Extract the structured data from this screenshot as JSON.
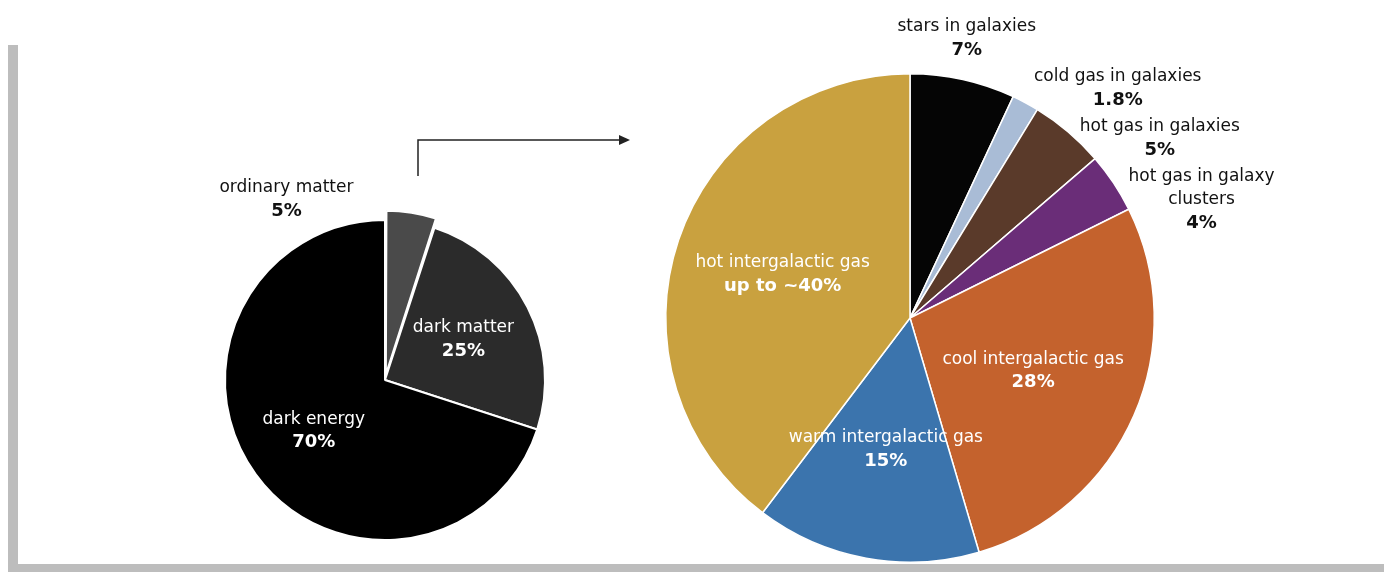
{
  "chart_data": [
    {
      "type": "pie",
      "categories": [
        "ordinary matter",
        "dark matter",
        "dark energy"
      ],
      "values": [
        5,
        25,
        70
      ],
      "value_labels": [
        "5%",
        "25%",
        "70%"
      ],
      "colors": [
        "#4a4a4a",
        "#2b2b2b",
        "#000000"
      ],
      "data_labels": true
    },
    {
      "type": "pie",
      "categories": [
        "stars in galaxies",
        "cold gas in galaxies",
        "hot gas in galaxies",
        "hot gas in galaxy clusters",
        "cool intergalactic gas",
        "warm intergalactic gas",
        "hot intergalactic gas"
      ],
      "values": [
        7,
        1.8,
        5,
        4,
        28,
        15,
        40
      ],
      "value_labels": [
        "7%",
        "1.8%",
        "5%",
        "4%",
        "28%",
        "15%",
        "up to ~40%"
      ],
      "colors": [
        "#050505",
        "#a9bcd6",
        "#5a3a2a",
        "#6a2d78",
        "#c4622d",
        "#3b74ad",
        "#c9a13f"
      ],
      "data_labels": true
    }
  ]
}
